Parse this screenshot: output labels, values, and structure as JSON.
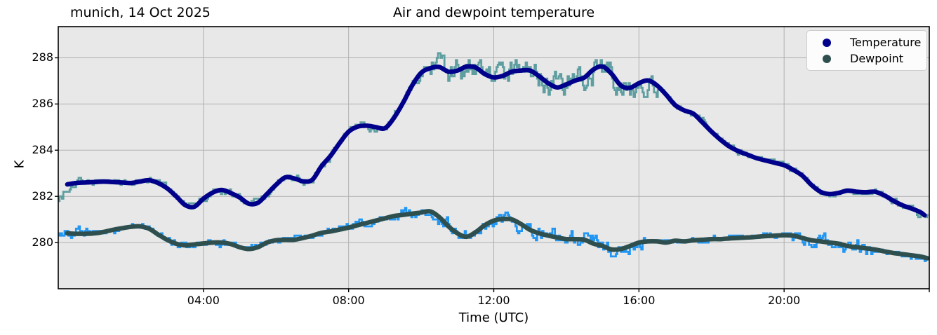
{
  "chart_data": {
    "type": "line",
    "title": "Air and dewpoint temperature",
    "subtitle_left": "munich, 14 Oct 2025",
    "xlabel": "Time (UTC)",
    "ylabel": "K",
    "xlim_hours": [
      0,
      24
    ],
    "ylim": [
      278.0,
      289.35
    ],
    "grid": true,
    "colors": {
      "figure_bg": "#FFFFFF",
      "plot_bg": "#E8E8E8",
      "grid": "#B0B0B0",
      "spine": "#000000",
      "temperature_smooth": "#00008B",
      "temperature_raw": "#5F9EA0",
      "dewpoint_smooth": "#2F4F4F",
      "dewpoint_raw": "#2196F3"
    },
    "xticks": {
      "hours": [
        4,
        8,
        12,
        16,
        20
      ],
      "labels": [
        "04:00",
        "08:00",
        "12:00",
        "16:00",
        "20:00"
      ],
      "unlabeled_tick_hour": 24
    },
    "yticks": {
      "values": [
        280,
        282,
        284,
        286,
        288
      ],
      "labels": [
        "280",
        "282",
        "284",
        "286",
        "288"
      ]
    },
    "legend": {
      "position": "upper right",
      "entries": [
        {
          "label": "Temperature",
          "color": "#00008B"
        },
        {
          "label": "Dewpoint",
          "color": "#2F4F4F"
        }
      ]
    },
    "series": [
      {
        "name": "Temperature (smoothed)",
        "role": "smoothed",
        "color": "#00008B",
        "line_width": 6.5,
        "start_hour": 0.15,
        "end_hour": 23.87,
        "x_step_hours": 0.25,
        "values": [
          282.4,
          282.52,
          282.58,
          282.6,
          282.62,
          282.64,
          282.62,
          282.6,
          282.58,
          282.64,
          282.7,
          282.58,
          282.35,
          282.0,
          281.62,
          281.55,
          281.9,
          282.16,
          282.28,
          282.15,
          281.95,
          281.68,
          281.72,
          282.1,
          282.5,
          282.82,
          282.78,
          282.65,
          282.72,
          283.3,
          283.75,
          284.3,
          284.8,
          285.02,
          285.06,
          285.0,
          284.95,
          285.4,
          286.05,
          286.8,
          287.35,
          287.55,
          287.6,
          287.4,
          287.45,
          287.62,
          287.58,
          287.3,
          287.15,
          287.22,
          287.4,
          287.45,
          287.45,
          287.2,
          286.9,
          286.72,
          286.85,
          287.02,
          287.15,
          287.5,
          287.62,
          287.3,
          286.8,
          286.7,
          286.9,
          287.02,
          286.8,
          286.4,
          285.95,
          285.72,
          285.58,
          285.2,
          284.8,
          284.45,
          284.15,
          283.95,
          283.8,
          283.65,
          283.55,
          283.45,
          283.35,
          283.15,
          282.9,
          282.5,
          282.2,
          282.1,
          282.15,
          282.25,
          282.2,
          282.18,
          282.2,
          282.05,
          281.82,
          281.62,
          281.48,
          281.32,
          281.18
        ]
      },
      {
        "name": "Temperature (raw 1-min)",
        "role": "raw",
        "base": 0,
        "color": "#5F9EA0",
        "line_width": 2.8,
        "seed": 7,
        "quantize_k": 0.1,
        "noise_segments": [
          [
            0,
            0.18
          ],
          [
            0.6,
            0.1
          ],
          [
            2.8,
            0.14
          ],
          [
            5.8,
            0.1
          ],
          [
            7.0,
            0.14
          ],
          [
            8.3,
            0.22
          ],
          [
            10.2,
            0.45
          ],
          [
            13.2,
            0.5
          ],
          [
            16.5,
            0.12
          ],
          [
            20.0,
            0.1
          ],
          [
            23.0,
            0.14
          ]
        ],
        "start_tail_bias": -1.6,
        "end_tail_bias": -0.4
      },
      {
        "name": "Dewpoint (smoothed)",
        "role": "smoothed",
        "color": "#2F4F4F",
        "line_width": 6.5,
        "start_hour": 0.25,
        "end_hour": 23.95,
        "x_step_hours": 0.25,
        "values": [
          280.45,
          280.4,
          280.38,
          280.38,
          280.4,
          280.46,
          280.55,
          280.62,
          280.68,
          280.7,
          280.6,
          280.35,
          280.12,
          279.95,
          279.88,
          279.92,
          279.96,
          280.0,
          280.0,
          279.94,
          279.8,
          279.72,
          279.8,
          280.0,
          280.1,
          280.12,
          280.12,
          280.2,
          280.3,
          280.42,
          280.48,
          280.56,
          280.65,
          280.75,
          280.85,
          280.95,
          281.05,
          281.15,
          281.2,
          281.25,
          281.3,
          281.35,
          281.1,
          280.7,
          280.4,
          280.25,
          280.45,
          280.75,
          280.95,
          281.02,
          281.0,
          280.8,
          280.55,
          280.4,
          280.3,
          280.22,
          280.15,
          280.15,
          280.12,
          279.95,
          279.85,
          279.7,
          279.72,
          279.85,
          280.0,
          280.05,
          280.05,
          280.0,
          280.08,
          280.05,
          280.1,
          280.12,
          280.15,
          280.15,
          280.18,
          280.2,
          280.22,
          280.25,
          280.28,
          280.3,
          280.32,
          280.3,
          280.2,
          280.1,
          280.05,
          280.0,
          279.95,
          279.85,
          279.8,
          279.75,
          279.7,
          279.62,
          279.55,
          279.5,
          279.45,
          279.4,
          279.32
        ]
      },
      {
        "name": "Dewpoint (raw 1-min)",
        "role": "raw",
        "base": 2,
        "color": "#2196F3",
        "line_width": 2.8,
        "seed": 13,
        "quantize_k": 0.1,
        "noise_segments": [
          [
            0,
            0.22
          ],
          [
            0.8,
            0.1
          ],
          [
            3.0,
            0.12
          ],
          [
            6.0,
            0.1
          ],
          [
            7.5,
            0.15
          ],
          [
            9.3,
            0.2
          ],
          [
            10.4,
            0.3
          ],
          [
            11.3,
            0.22
          ],
          [
            12.6,
            0.32
          ],
          [
            14.8,
            0.28
          ],
          [
            16.2,
            0.1
          ],
          [
            18.0,
            0.08
          ],
          [
            20.2,
            0.25
          ],
          [
            22.6,
            0.12
          ]
        ],
        "start_tail_bias": 0,
        "end_tail_bias": -0.3
      }
    ]
  }
}
